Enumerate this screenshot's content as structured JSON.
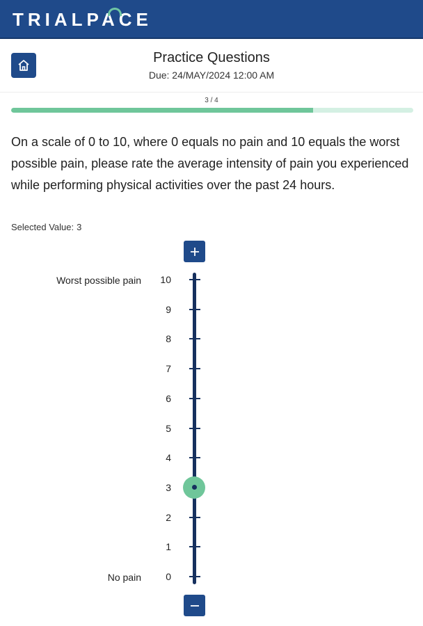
{
  "header": {
    "brand": "TRIALPACE",
    "title": "Practice Questions",
    "due": "Due: 24/MAY/2024 12:00 AM"
  },
  "progress": {
    "label": "3 / 4",
    "current": 3,
    "total": 4,
    "fraction": 0.75
  },
  "question": {
    "text": "On a scale of 0 to 10, where 0 equals no pain and 10 equals the worst possible pain, please rate the average intensity of pain you experienced while performing physical activities over the past 24 hours.",
    "selected_label": "Selected Value:",
    "selected_value": "3"
  },
  "scale": {
    "min": 0,
    "max": 10,
    "value": 3,
    "ticks": [
      "0",
      "1",
      "2",
      "3",
      "4",
      "5",
      "6",
      "7",
      "8",
      "9",
      "10"
    ],
    "max_label": "Worst possible pain",
    "min_label": "No pain"
  },
  "icons": {
    "home": "home-icon",
    "increment": "plus-icon",
    "decrement": "minus-icon"
  },
  "colors": {
    "primary": "#1f4a8a",
    "accent": "#6fc69a",
    "track": "#16305e",
    "progress_bg": "#d4f0e3"
  }
}
